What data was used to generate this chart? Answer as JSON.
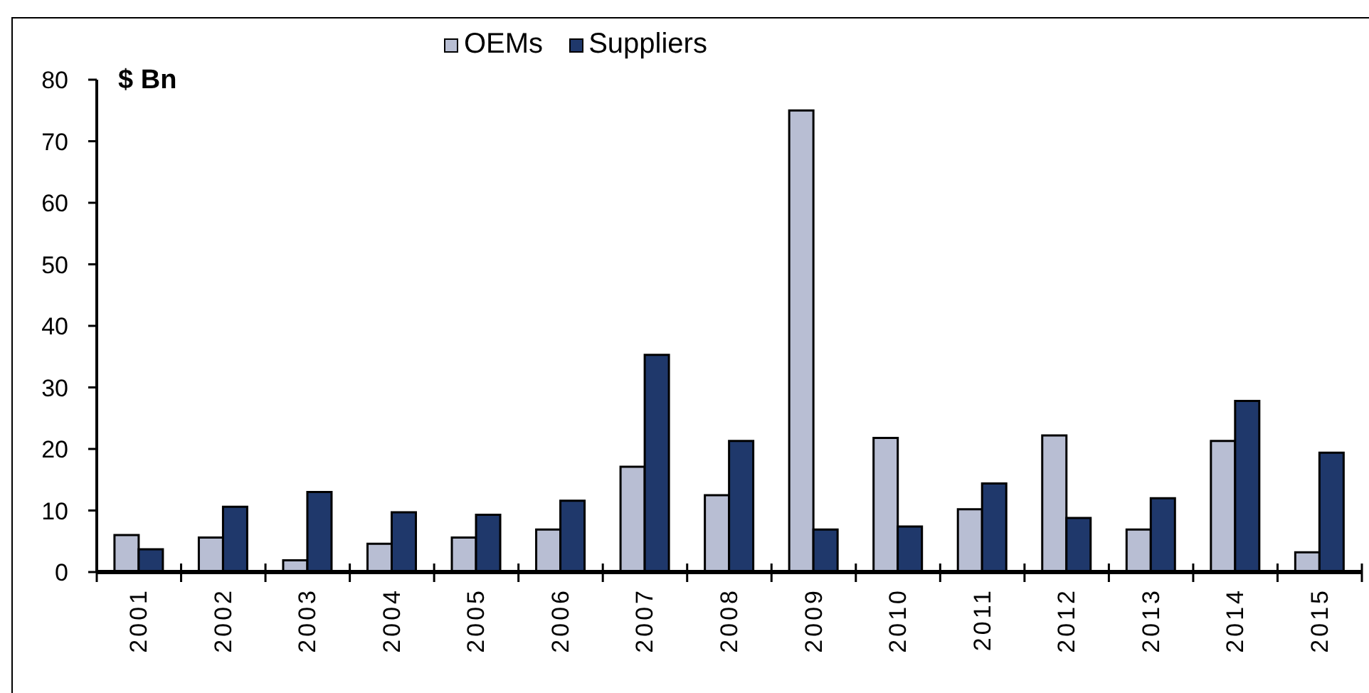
{
  "chart_data": {
    "type": "bar",
    "ylabel": "$ Bn",
    "categories": [
      "2001",
      "2002",
      "2003",
      "2004",
      "2005",
      "2006",
      "2007",
      "2008",
      "2009",
      "2010",
      "2011",
      "2012",
      "2013",
      "2014",
      "2015"
    ],
    "series": [
      {
        "name": "OEMs",
        "color": "#b8bed3",
        "values": [
          6.0,
          5.6,
          1.9,
          4.6,
          5.6,
          6.9,
          17.1,
          12.5,
          75.0,
          21.8,
          10.2,
          22.2,
          6.9,
          21.3,
          3.2
        ]
      },
      {
        "name": "Suppliers",
        "color": "#1f386b",
        "values": [
          3.7,
          10.6,
          13.0,
          9.7,
          9.3,
          11.6,
          35.3,
          21.3,
          6.9,
          7.4,
          14.4,
          8.8,
          12.0,
          27.8,
          19.4
        ]
      }
    ],
    "ylim": [
      0,
      80
    ],
    "yticks": [
      0,
      10,
      20,
      30,
      40,
      50,
      60,
      70,
      80
    ],
    "legend": "top"
  }
}
